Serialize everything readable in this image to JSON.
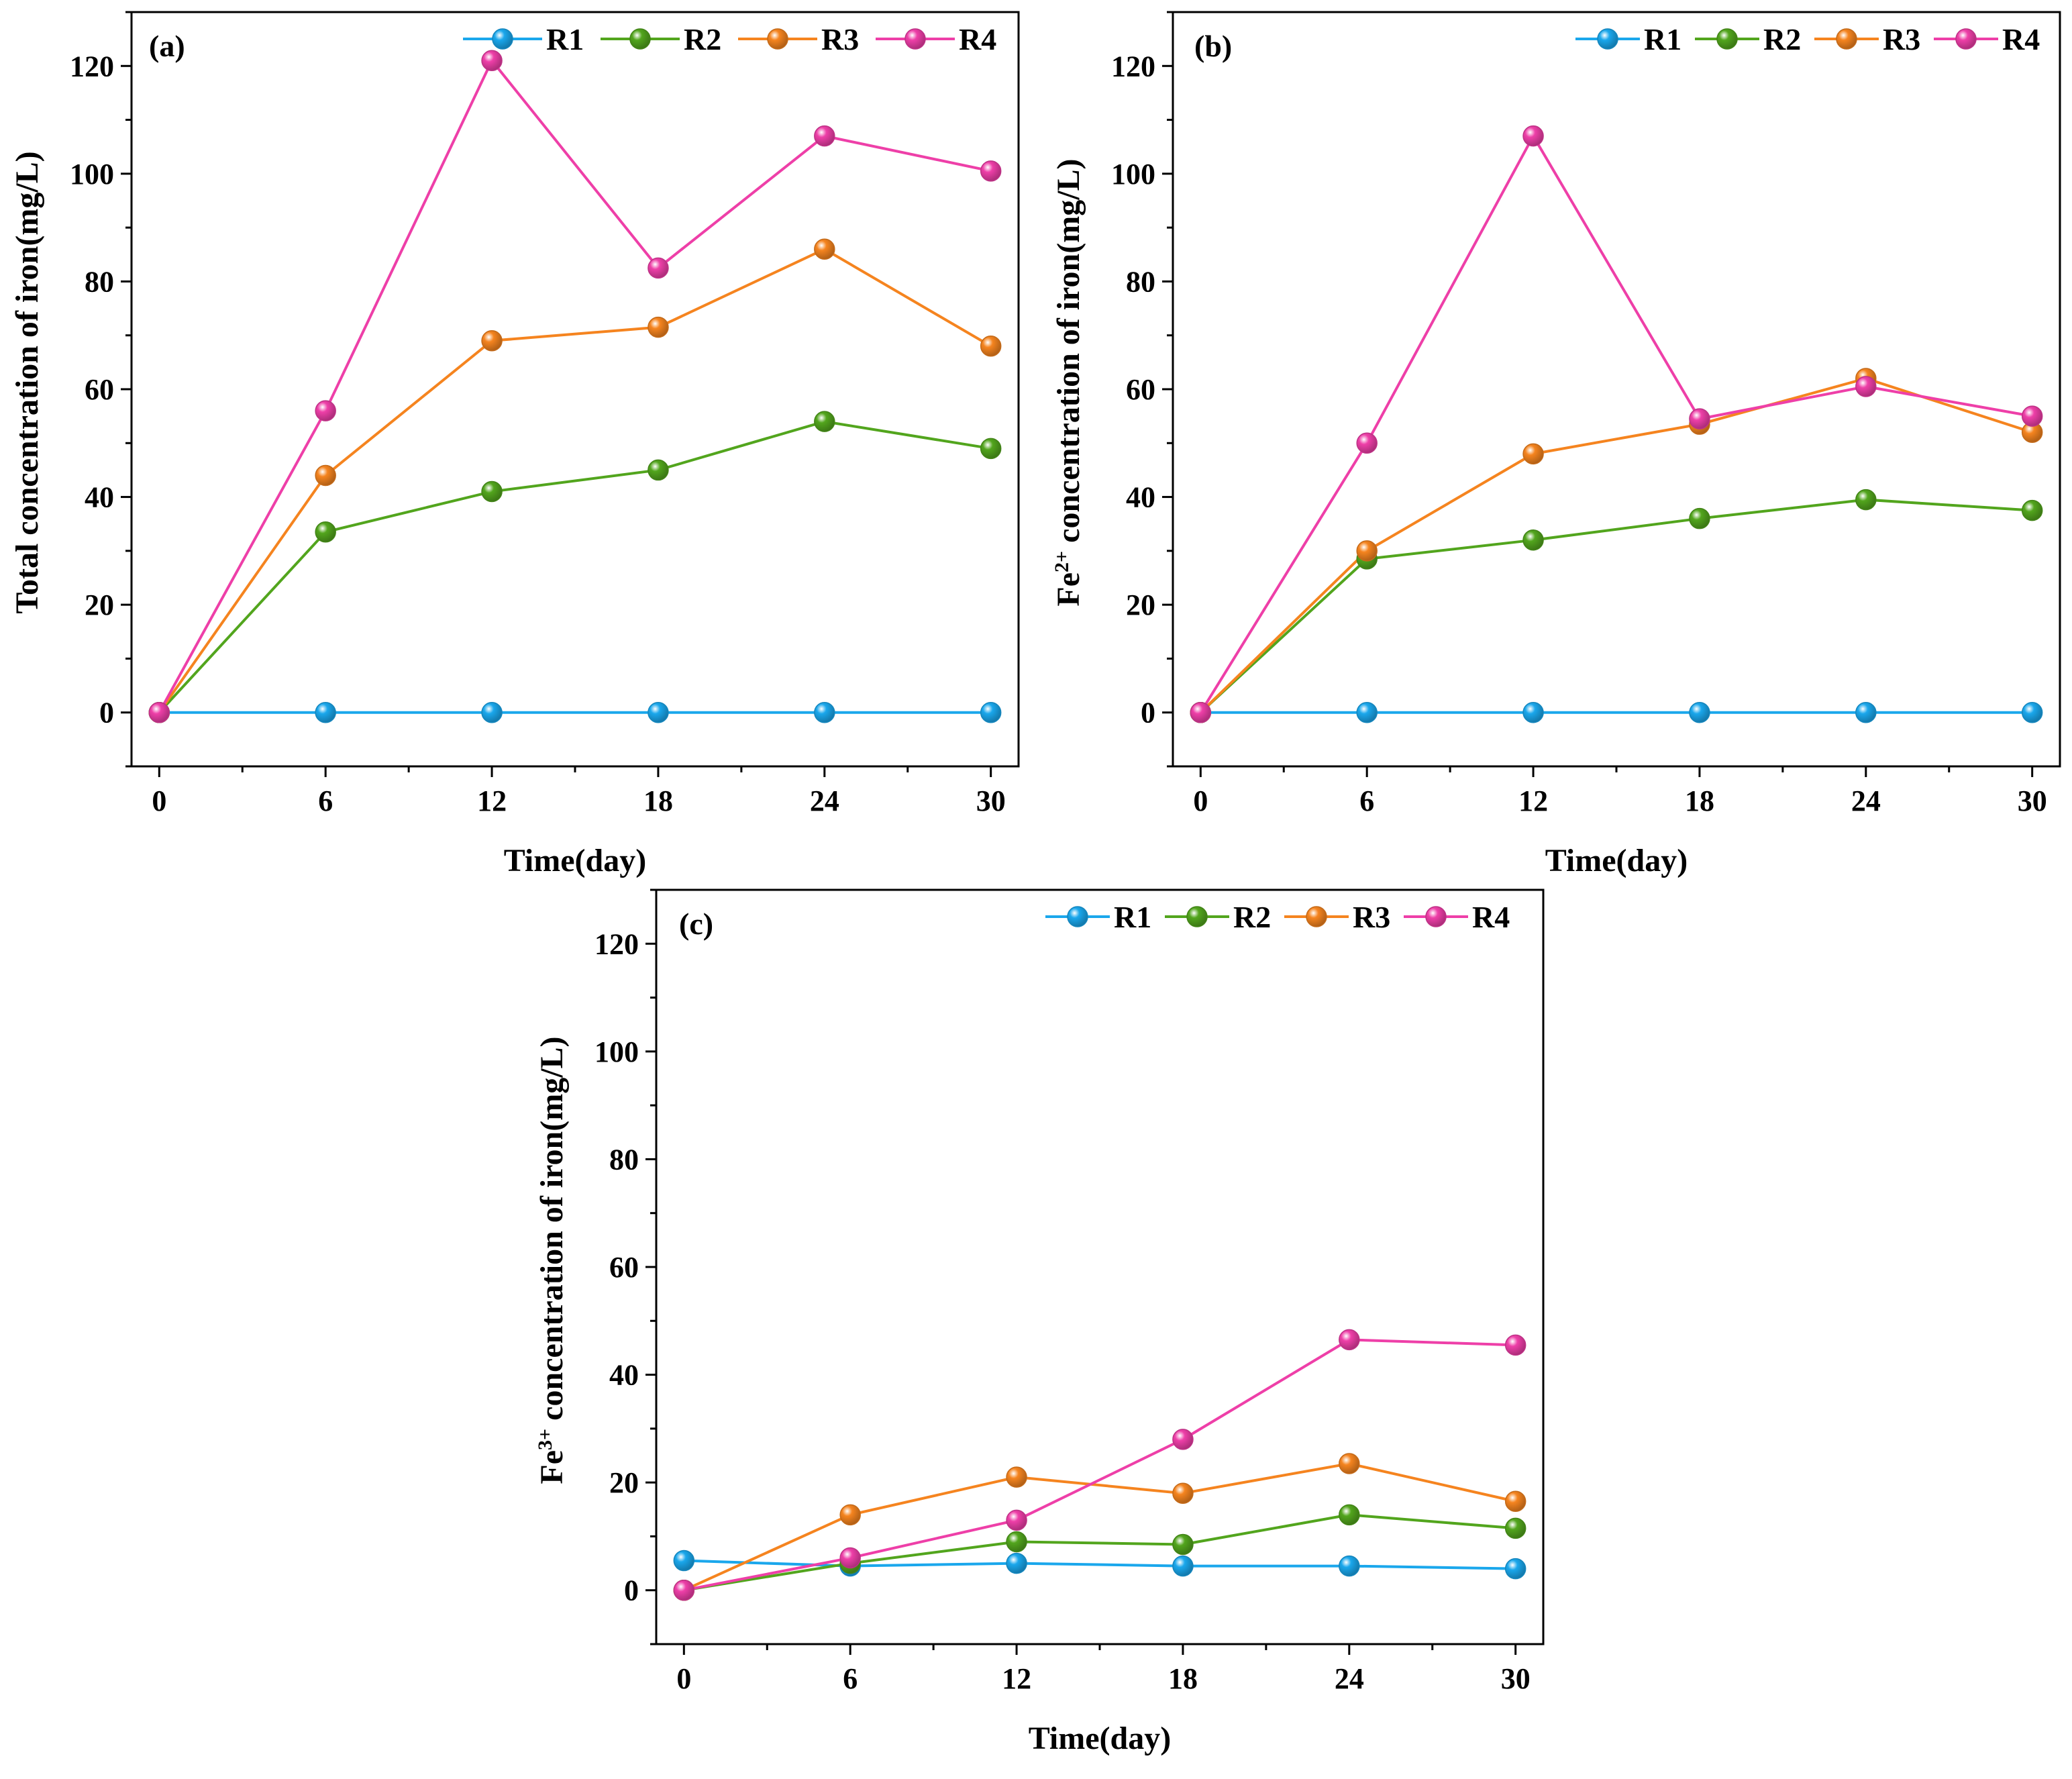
{
  "colors": {
    "R1": "#1aa7ec",
    "R2": "#52a51d",
    "R3": "#f5841f",
    "R4": "#ee3fa8"
  },
  "chart_data": [
    {
      "type": "line",
      "panel_label": "(a)",
      "ylabel": "Total concentration of iron(mg/L)",
      "xlabel": "Time(day)",
      "x": [
        0,
        6,
        12,
        18,
        24,
        30
      ],
      "xticks": [
        "0",
        "6",
        "12",
        "18",
        "24",
        "30"
      ],
      "yticks": [
        "0",
        "20",
        "40",
        "60",
        "80",
        "100",
        "120"
      ],
      "xlim": [
        -1,
        31
      ],
      "ylim": [
        -10,
        130
      ],
      "legend": [
        "R1",
        "R2",
        "R3",
        "R4"
      ],
      "legend_position": "top-right",
      "series": [
        {
          "name": "R1",
          "values": [
            0,
            0,
            0,
            0,
            0,
            0
          ]
        },
        {
          "name": "R2",
          "values": [
            0,
            33.5,
            41,
            45,
            54,
            49
          ]
        },
        {
          "name": "R3",
          "values": [
            0,
            44,
            69,
            71.5,
            86,
            68
          ]
        },
        {
          "name": "R4",
          "values": [
            0,
            56,
            121,
            82.5,
            107,
            100.5
          ]
        }
      ]
    },
    {
      "type": "line",
      "panel_label": "(b)",
      "ylabel_prefix": "Fe",
      "ylabel_sup": "2+",
      "ylabel_suffix": " concentration of iron(mg/L)",
      "xlabel": "Time(day)",
      "x": [
        0,
        6,
        12,
        18,
        24,
        30
      ],
      "xticks": [
        "0",
        "6",
        "12",
        "18",
        "24",
        "30"
      ],
      "yticks": [
        "0",
        "20",
        "40",
        "60",
        "80",
        "100",
        "120"
      ],
      "xlim": [
        -1,
        31
      ],
      "ylim": [
        -10,
        130
      ],
      "legend": [
        "R1",
        "R2",
        "R3",
        "R4"
      ],
      "legend_position": "top-right",
      "series": [
        {
          "name": "R1",
          "values": [
            0,
            0,
            0,
            0,
            0,
            0
          ]
        },
        {
          "name": "R2",
          "values": [
            0,
            28.5,
            32,
            36,
            39.5,
            37.5
          ]
        },
        {
          "name": "R3",
          "values": [
            0,
            30,
            48,
            53.5,
            62,
            52
          ]
        },
        {
          "name": "R4",
          "values": [
            0,
            50,
            107,
            54.5,
            60.5,
            55
          ]
        }
      ]
    },
    {
      "type": "line",
      "panel_label": "(c)",
      "ylabel_prefix": "Fe",
      "ylabel_sup": "3+",
      "ylabel_suffix": " concentration of iron(mg/L)",
      "xlabel": "Time(day)",
      "x": [
        0,
        6,
        12,
        18,
        24,
        30
      ],
      "xticks": [
        "0",
        "6",
        "12",
        "18",
        "24",
        "30"
      ],
      "yticks": [
        "0",
        "20",
        "40",
        "60",
        "80",
        "100",
        "120"
      ],
      "xlim": [
        -1,
        31
      ],
      "ylim": [
        -10,
        130
      ],
      "legend": [
        "R1",
        "R2",
        "R3",
        "R4"
      ],
      "legend_position": "top-right",
      "series": [
        {
          "name": "R1",
          "values": [
            5.5,
            4.5,
            5,
            4.5,
            4.5,
            4
          ]
        },
        {
          "name": "R2",
          "values": [
            0,
            5,
            9,
            8.5,
            14,
            11.5
          ]
        },
        {
          "name": "R3",
          "values": [
            0,
            14,
            21,
            18,
            23.5,
            16.5
          ]
        },
        {
          "name": "R4",
          "values": [
            0,
            6,
            13,
            28,
            46.5,
            45.5
          ]
        }
      ]
    }
  ]
}
